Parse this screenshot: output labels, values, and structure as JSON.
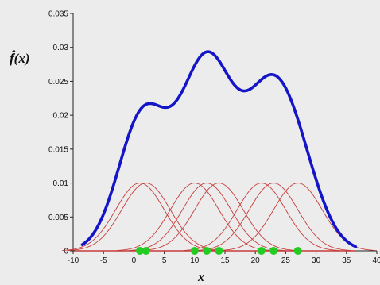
{
  "chart_data": {
    "type": "line",
    "title": "",
    "xlabel": "x",
    "ylabel": "f̂(x)",
    "xlim": [
      -10,
      40
    ],
    "ylim": [
      0,
      0.035
    ],
    "xticks": [
      "-10",
      "-5",
      "0",
      "5",
      "10",
      "15",
      "20",
      "25",
      "30",
      "35",
      "40"
    ],
    "yticks": [
      "0",
      "0.005",
      "0.01",
      "0.015",
      "0.02",
      "0.025",
      "0.03",
      "0.035"
    ],
    "data_points": [
      1,
      2,
      10,
      12,
      14,
      21,
      23,
      27
    ],
    "kernel_peak": 0.01,
    "kernel_bandwidth": 4.0,
    "kde_range": [
      -8.5,
      36.5
    ],
    "series": [
      {
        "role": "density estimate",
        "color": "#1414c8"
      },
      {
        "role": "component kernels",
        "color": "#c83c3c"
      },
      {
        "role": "observations",
        "color": "#22cc22"
      }
    ],
    "grid": false
  }
}
